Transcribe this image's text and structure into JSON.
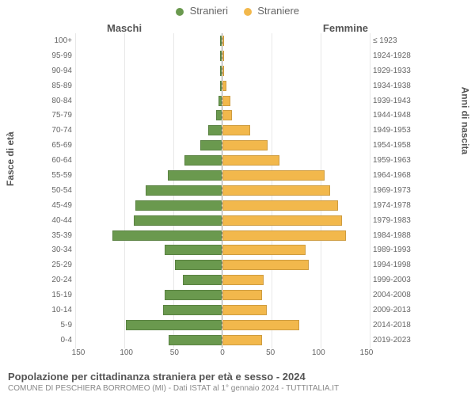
{
  "legend": {
    "male": {
      "label": "Stranieri",
      "color": "#6a994e"
    },
    "female": {
      "label": "Straniere",
      "color": "#f2b84c"
    }
  },
  "gender_headers": {
    "left": "Maschi",
    "right": "Femmine"
  },
  "axis_titles": {
    "left": "Fasce di età",
    "right": "Anni di nascita"
  },
  "chart": {
    "type": "population-pyramid",
    "x_max": 150,
    "x_ticks": [
      150,
      100,
      50,
      0,
      50,
      100,
      150
    ],
    "male_color": "#6a994e",
    "female_color": "#f2b84c",
    "bar_border_color": "rgba(0,0,0,0.15)",
    "grid_color": "#e8e8e8",
    "background_color": "#ffffff",
    "rows": [
      {
        "age": "100+",
        "years": "≤ 1923",
        "m": 0,
        "f": 0
      },
      {
        "age": "95-99",
        "years": "1924-1928",
        "m": 0,
        "f": 0
      },
      {
        "age": "90-94",
        "years": "1929-1933",
        "m": 0,
        "f": 2
      },
      {
        "age": "85-89",
        "years": "1934-1938",
        "m": 0,
        "f": 4
      },
      {
        "age": "80-84",
        "years": "1939-1943",
        "m": 3,
        "f": 8
      },
      {
        "age": "75-79",
        "years": "1944-1948",
        "m": 6,
        "f": 10
      },
      {
        "age": "70-74",
        "years": "1949-1953",
        "m": 14,
        "f": 28
      },
      {
        "age": "65-69",
        "years": "1954-1958",
        "m": 22,
        "f": 46
      },
      {
        "age": "60-64",
        "years": "1959-1963",
        "m": 38,
        "f": 58
      },
      {
        "age": "55-59",
        "years": "1964-1968",
        "m": 55,
        "f": 104
      },
      {
        "age": "50-54",
        "years": "1969-1973",
        "m": 78,
        "f": 110
      },
      {
        "age": "45-49",
        "years": "1974-1978",
        "m": 88,
        "f": 118
      },
      {
        "age": "40-44",
        "years": "1979-1983",
        "m": 90,
        "f": 122
      },
      {
        "age": "35-39",
        "years": "1984-1988",
        "m": 112,
        "f": 126
      },
      {
        "age": "30-34",
        "years": "1989-1993",
        "m": 58,
        "f": 85
      },
      {
        "age": "25-29",
        "years": "1994-1998",
        "m": 48,
        "f": 88
      },
      {
        "age": "20-24",
        "years": "1999-2003",
        "m": 40,
        "f": 42
      },
      {
        "age": "15-19",
        "years": "2004-2008",
        "m": 58,
        "f": 40
      },
      {
        "age": "10-14",
        "years": "2009-2013",
        "m": 60,
        "f": 45
      },
      {
        "age": "5-9",
        "years": "2014-2018",
        "m": 98,
        "f": 78
      },
      {
        "age": "0-4",
        "years": "2019-2023",
        "m": 54,
        "f": 40
      }
    ]
  },
  "caption": {
    "title": "Popolazione per cittadinanza straniera per età e sesso - 2024",
    "subtitle": "COMUNE DI PESCHIERA BORROMEO (MI) - Dati ISTAT al 1° gennaio 2024 - TUTTITALIA.IT"
  }
}
